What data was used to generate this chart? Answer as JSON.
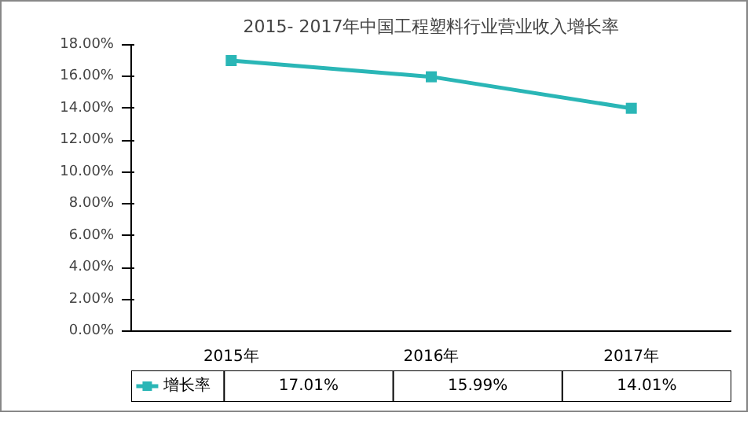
{
  "chart_data": {
    "type": "line",
    "title": "2015- 2017年中国工程塑料行业营业收入增长率",
    "categories": [
      "2015年",
      "2016年",
      "2017年"
    ],
    "series": [
      {
        "name": "增长率",
        "color": "#2ab6b6",
        "values": [
          17.01,
          15.99,
          14.01
        ],
        "value_labels": [
          "17.01%",
          "15.99%",
          "14.01%"
        ]
      }
    ],
    "ylim": [
      0,
      18
    ],
    "yticks": [
      {
        "value": 0,
        "label": "0.00%"
      },
      {
        "value": 2,
        "label": "2.00%"
      },
      {
        "value": 4,
        "label": "4.00%"
      },
      {
        "value": 6,
        "label": "6.00%"
      },
      {
        "value": 8,
        "label": "8.00%"
      },
      {
        "value": 10,
        "label": "10.00%"
      },
      {
        "value": 12,
        "label": "12.00%"
      },
      {
        "value": 14,
        "label": "14.00%"
      },
      {
        "value": 16,
        "label": "16.00%"
      },
      {
        "value": 18,
        "label": "18.00%"
      }
    ],
    "marker": "square",
    "line_style": "solid",
    "grid": false,
    "legend": "bottom left"
  }
}
